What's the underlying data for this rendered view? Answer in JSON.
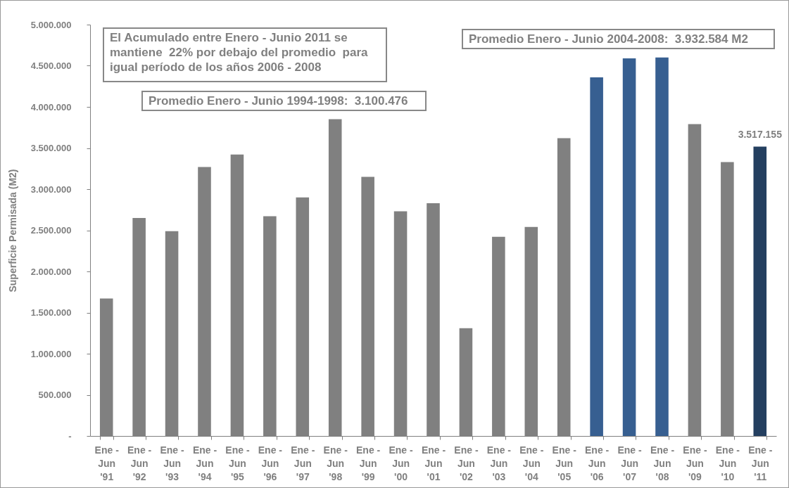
{
  "chart_data": {
    "type": "bar",
    "ylabel": "Superficie Permisada (M2)",
    "categories": [
      "Ene - Jun '91",
      "Ene - Jun '92",
      "Ene - Jun '93",
      "Ene - Jun '94",
      "Ene - Jun '95",
      "Ene - Jun '96",
      "Ene - Jun '97",
      "Ene - Jun '98",
      "Ene - Jun '99",
      "Ene - Jun '00",
      "Ene - Jun '01",
      "Ene - Jun '02",
      "Ene - Jun '03",
      "Ene - Jun '04",
      "Ene - Jun '05",
      "Ene - Jun '06",
      "Ene - Jun '07",
      "Ene - Jun '08",
      "Ene - Jun '09",
      "Ene - Jun '10",
      "Ene - Jun '11"
    ],
    "values": [
      1670000,
      2650000,
      2490000,
      3270000,
      3420000,
      2670000,
      2900000,
      3850000,
      3150000,
      2730000,
      2830000,
      1310000,
      2420000,
      2540000,
      3620000,
      4360000,
      4590000,
      4600000,
      3790000,
      3330000,
      3517155
    ],
    "colors": [
      "#808080",
      "#808080",
      "#808080",
      "#808080",
      "#808080",
      "#808080",
      "#808080",
      "#808080",
      "#808080",
      "#808080",
      "#808080",
      "#808080",
      "#808080",
      "#808080",
      "#808080",
      "#375f91",
      "#375f91",
      "#375f91",
      "#808080",
      "#808080",
      "#243f60"
    ],
    "value_labels": [
      null,
      null,
      null,
      null,
      null,
      null,
      null,
      null,
      null,
      null,
      null,
      null,
      null,
      null,
      null,
      null,
      null,
      null,
      null,
      null,
      "3.517.155"
    ],
    "ylim": [
      0,
      5000000
    ],
    "yticks": [
      {
        "value": 0,
        "label": "-"
      },
      {
        "value": 500000,
        "label": "500.000"
      },
      {
        "value": 1000000,
        "label": "1.000.000"
      },
      {
        "value": 1500000,
        "label": "1.500.000"
      },
      {
        "value": 2000000,
        "label": "2.000.000"
      },
      {
        "value": 2500000,
        "label": "2.500.000"
      },
      {
        "value": 3000000,
        "label": "3.000.000"
      },
      {
        "value": 3500000,
        "label": "3.500.000"
      },
      {
        "value": 4000000,
        "label": "4.000.000"
      },
      {
        "value": 4500000,
        "label": "4.500.000"
      },
      {
        "value": 5000000,
        "label": "5.000.000"
      }
    ],
    "grid": false,
    "annotations": [
      "El Acumulado entre Enero - Junio 2011 se mantiene  22% por debajo del promedio  para igual período de los años 2006 - 2008",
      "Promedio Enero - Junio 1994-1998:  3.100.476",
      "Promedio Enero - Junio 2004-2008:  3.932.584 M2"
    ]
  }
}
